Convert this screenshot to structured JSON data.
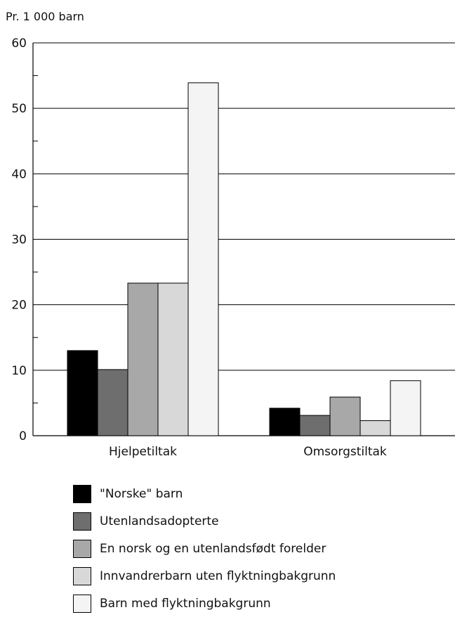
{
  "chart_data": {
    "type": "bar",
    "ylabel": "Pr. 1 000 barn",
    "ylim": [
      0,
      60
    ],
    "yticks": [
      "0",
      "10",
      "20",
      "30",
      "40",
      "50",
      "60"
    ],
    "grid": true,
    "categories": [
      "Hjelpetiltak",
      "Omsorgstiltak"
    ],
    "series": [
      {
        "name": "\"Norske\" barn",
        "values": [
          13,
          4.2
        ],
        "color": "#000000"
      },
      {
        "name": "Utenlandsadopterte",
        "values": [
          10.1,
          3.1
        ],
        "color": "#6e6e6e"
      },
      {
        "name": "En norsk og en utenlandsfødt forelder",
        "values": [
          23.3,
          5.9
        ],
        "color": "#a8a8a8"
      },
      {
        "name": "Innvandrerbarn uten flyktningbakgrunn",
        "values": [
          23.3,
          2.3
        ],
        "color": "#d8d8d8"
      },
      {
        "name": "Barn med flyktningbakgrunn",
        "values": [
          53.9,
          8.4
        ],
        "color": "#f4f4f4"
      }
    ],
    "legend_position": "bottom"
  }
}
